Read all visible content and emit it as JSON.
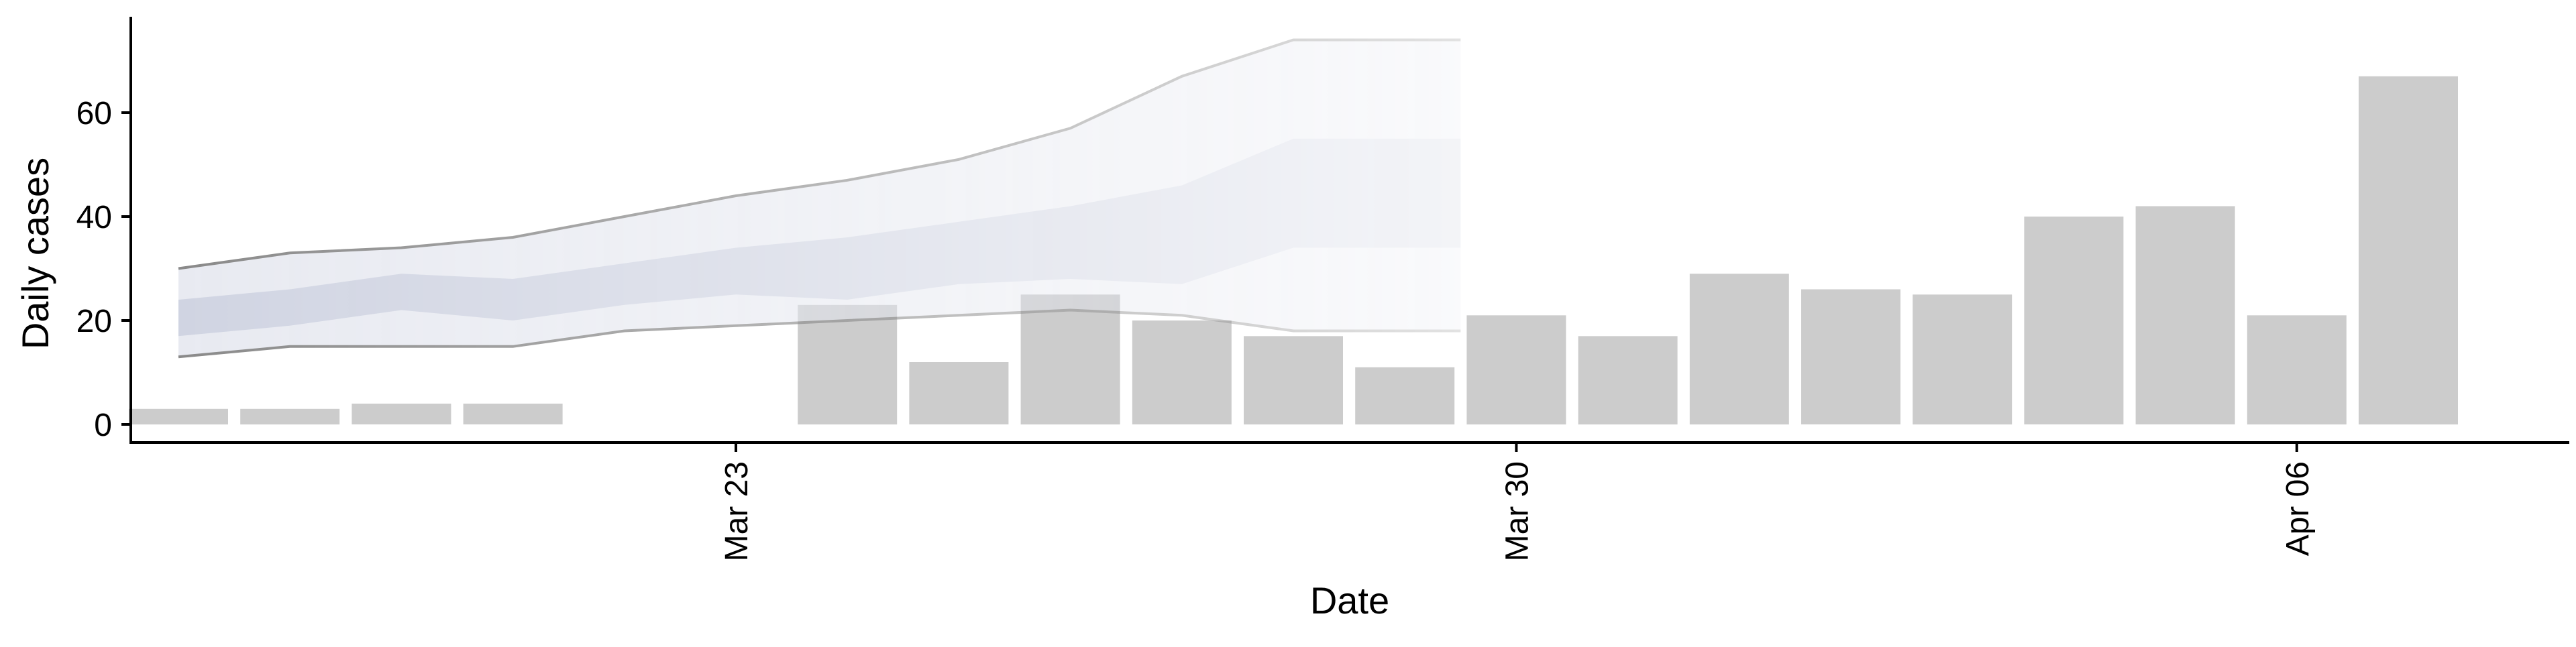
{
  "chart_data": {
    "type": "bar",
    "xlabel": "Date",
    "ylabel": "Daily cases",
    "ylim": [
      0,
      75
    ],
    "y_ticks": [
      0,
      20,
      40,
      60
    ],
    "x_ticks": [
      {
        "date": "2020-03-23",
        "label": "Mar 23"
      },
      {
        "date": "2020-03-30",
        "label": "Mar 30"
      },
      {
        "date": "2020-04-06",
        "label": "Apr 06"
      }
    ],
    "x_range": [
      "2020-03-17",
      "2020-04-09"
    ],
    "bar_color": "#cccccc",
    "bars": [
      {
        "date": "2020-03-18",
        "value": 3
      },
      {
        "date": "2020-03-19",
        "value": 3
      },
      {
        "date": "2020-03-20",
        "value": 4
      },
      {
        "date": "2020-03-21",
        "value": 4
      },
      {
        "date": "2020-03-24",
        "value": 23
      },
      {
        "date": "2020-03-25",
        "value": 12
      },
      {
        "date": "2020-03-26",
        "value": 25
      },
      {
        "date": "2020-03-27",
        "value": 20
      },
      {
        "date": "2020-03-28",
        "value": 17
      },
      {
        "date": "2020-03-29",
        "value": 11
      },
      {
        "date": "2020-03-30",
        "value": 21
      },
      {
        "date": "2020-03-31",
        "value": 17
      },
      {
        "date": "2020-04-01",
        "value": 29
      },
      {
        "date": "2020-04-02",
        "value": 26
      },
      {
        "date": "2020-04-03",
        "value": 25
      },
      {
        "date": "2020-04-04",
        "value": 40
      },
      {
        "date": "2020-04-05",
        "value": 42
      },
      {
        "date": "2020-04-06",
        "value": 21
      },
      {
        "date": "2020-04-07",
        "value": 67
      }
    ],
    "ribbon": {
      "dates": [
        "2020-03-18",
        "2020-03-19",
        "2020-03-20",
        "2020-03-21",
        "2020-03-22",
        "2020-03-23",
        "2020-03-24",
        "2020-03-25",
        "2020-03-26",
        "2020-03-27",
        "2020-03-28",
        "2020-03-29"
      ],
      "outer_upper": [
        30,
        33,
        34,
        36,
        40,
        44,
        47,
        51,
        57,
        67,
        74,
        74
      ],
      "outer_lower": [
        13,
        15,
        15,
        15,
        18,
        19,
        20,
        21,
        22,
        21,
        18,
        18
      ],
      "inner_upper": [
        24,
        26,
        29,
        28,
        31,
        34,
        36,
        39,
        42,
        46,
        55,
        55
      ],
      "inner_lower": [
        17,
        19,
        22,
        20,
        23,
        25,
        24,
        27,
        28,
        27,
        34,
        34
      ],
      "end_date": "2020-03-29T12:00",
      "outer_fill": "#e4e6ef",
      "inner_fill": "#ccd1e0",
      "outer_line": "#8a8a8a",
      "lines_end_date": "2020-03-28"
    }
  }
}
